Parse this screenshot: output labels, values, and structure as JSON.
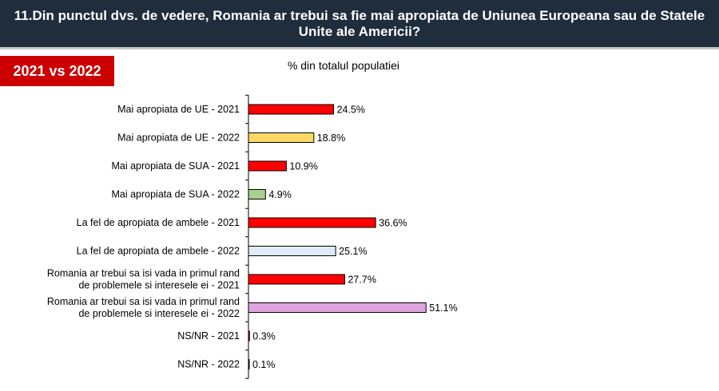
{
  "header": {
    "title": "11.Din punctul dvs. de vedere, Romania ar trebui sa fie mai apropiata de Uniunea Europeana sau de Statele Unite ale Americii?"
  },
  "badge": {
    "label": "2021 vs 2022"
  },
  "colors": {
    "header_bg": "#1f2d3d",
    "badge_bg": "#cc0000",
    "red": "#ff0000",
    "yellow": "#ffd966",
    "green": "#a9d18e",
    "light_blue": "#ddebf7",
    "pink": "#e0a5e0"
  },
  "chart_data": {
    "type": "bar",
    "orientation": "horizontal",
    "subtitle": "% din totalul populatiei",
    "categories": [
      "Mai apropiata de UE - 2021",
      "Mai apropiata de UE - 2022",
      "Mai apropiata de SUA - 2021",
      "Mai apropiata de SUA - 2022",
      "La fel de apropiata de ambele - 2021",
      "La fel de apropiata de ambele - 2022",
      "Romania ar trebui sa isi vada in primul rand de problemele si interesele ei - 2021",
      "Romania ar trebui sa isi vada in primul rand de problemele si interesele ei - 2022",
      "NS/NR - 2021",
      "NS/NR - 2022"
    ],
    "category_lines": [
      [
        "Mai apropiata de UE - 2021"
      ],
      [
        "Mai apropiata de UE - 2022"
      ],
      [
        "Mai apropiata de SUA - 2021"
      ],
      [
        "Mai apropiata de SUA - 2022"
      ],
      [
        "La fel de apropiata de ambele - 2021"
      ],
      [
        "La fel de apropiata de ambele - 2022"
      ],
      [
        "Romania ar trebui sa isi vada in primul rand",
        "de problemele si interesele ei - 2021"
      ],
      [
        "Romania ar trebui sa isi vada in primul rand",
        "de problemele si interesele ei - 2022"
      ],
      [
        "NS/NR - 2021"
      ],
      [
        "NS/NR - 2022"
      ]
    ],
    "values": [
      24.5,
      18.8,
      10.9,
      4.9,
      36.6,
      25.1,
      27.7,
      51.1,
      0.3,
      0.1
    ],
    "value_labels": [
      "24.5%",
      "18.8%",
      "10.9%",
      "4.9%",
      "36.6%",
      "25.1%",
      "27.7%",
      "51.1%",
      "0.3%",
      "0.1%"
    ],
    "bar_colors": [
      "#ff0000",
      "#ffd966",
      "#ff0000",
      "#a9d18e",
      "#ff0000",
      "#ddebf7",
      "#ff0000",
      "#e0a5e0",
      "#ff0000",
      "#ffffff"
    ],
    "xlim": [
      0,
      100
    ],
    "grid": false,
    "legend": "none"
  }
}
